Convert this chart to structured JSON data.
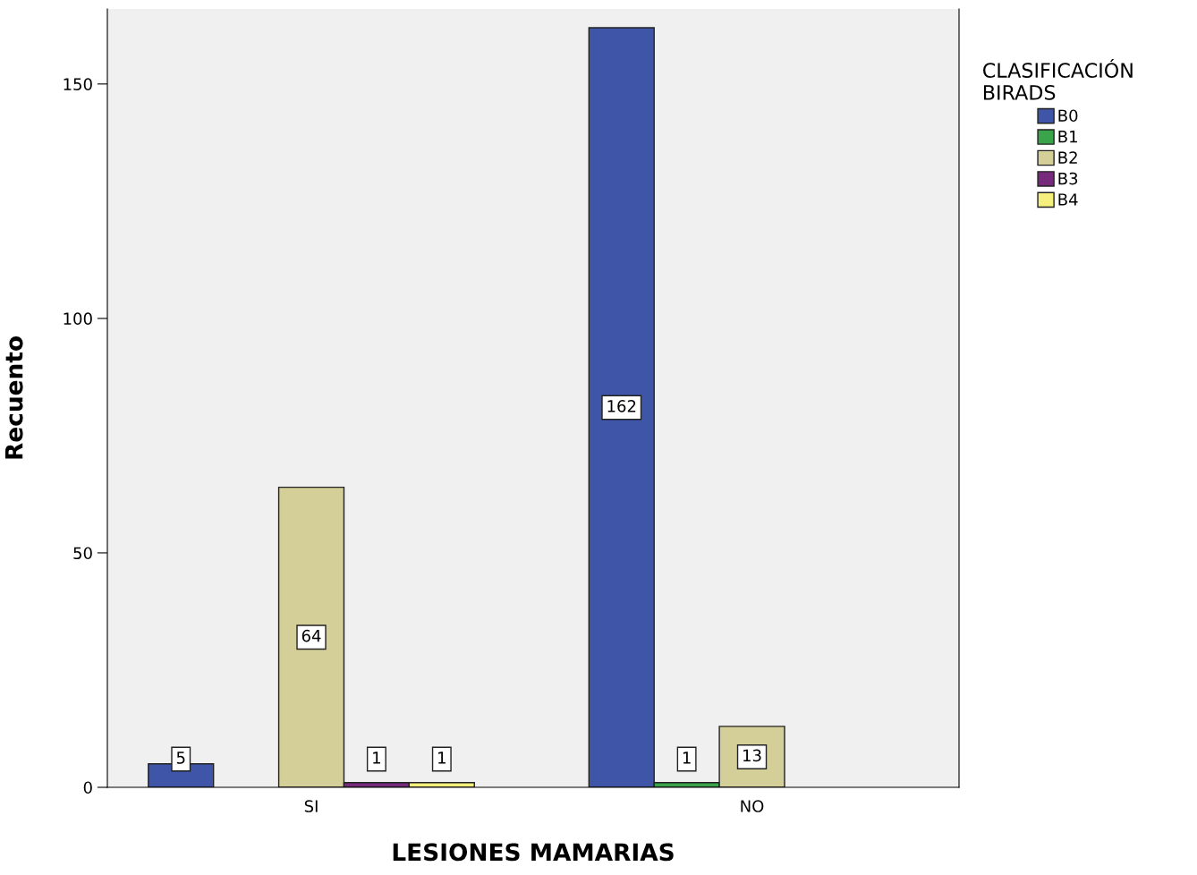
{
  "chart_data": {
    "type": "bar",
    "xlabel": "LESIONES MAMARIAS",
    "ylabel": "Recuento",
    "categories": [
      "SI",
      "NO"
    ],
    "series": [
      {
        "name": "B0",
        "color": "#3e55a8",
        "values": [
          5,
          162
        ]
      },
      {
        "name": "B1",
        "color": "#3aa44a",
        "values": [
          null,
          1
        ]
      },
      {
        "name": "B2",
        "color": "#d4cf98",
        "values": [
          64,
          13
        ]
      },
      {
        "name": "B3",
        "color": "#772a7c",
        "values": [
          1,
          null
        ]
      },
      {
        "name": "B4",
        "color": "#f5f07e",
        "values": [
          1,
          null
        ]
      }
    ],
    "legend_title": "CLASIFICACIÓN\nBIRADS",
    "legend": "right",
    "ylim": [
      0,
      166
    ],
    "yticks": [
      0,
      50,
      100,
      150
    ],
    "data_labels": true,
    "grid": false
  }
}
